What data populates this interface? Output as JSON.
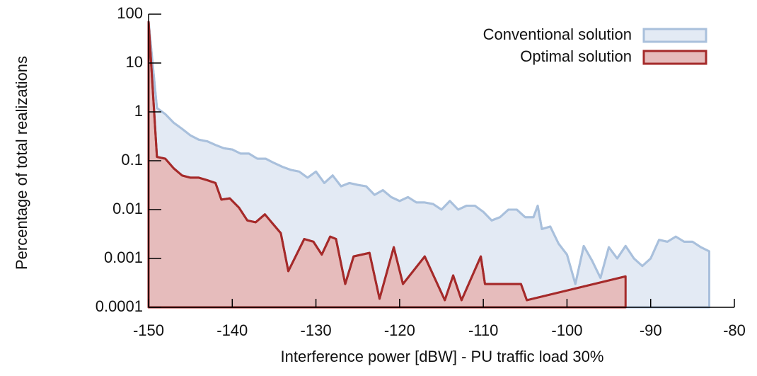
{
  "chart_data": {
    "type": "area",
    "xlabel": "Interference power [dBW] - PU traffic load 30%",
    "ylabel": "Percentage of total realizations",
    "xlim": [
      -150,
      -80
    ],
    "xticks": [
      -150,
      -140,
      -130,
      -120,
      -110,
      -100,
      -90,
      -80
    ],
    "ylim": [
      0.0001,
      100
    ],
    "yticks": [
      100,
      10,
      1,
      0.1,
      0.01,
      0.001,
      0.0001
    ],
    "ylog": true,
    "grid": false,
    "legend": "upper right",
    "series": [
      {
        "name": "Conventional solution",
        "color": "#a9c0dc",
        "fill": "#e3eaf4",
        "x": [
          -150,
          -149,
          -148,
          -147,
          -146,
          -145,
          -144,
          -143,
          -142,
          -141,
          -140,
          -139,
          -138,
          -137,
          -136,
          -135,
          -134,
          -133,
          -132,
          -131,
          -130,
          -129,
          -128,
          -127,
          -126,
          -125,
          -124,
          -123,
          -122,
          -121,
          -120,
          -119,
          -118,
          -117,
          -116,
          -115,
          -114,
          -113,
          -112,
          -111,
          -110,
          -109,
          -108,
          -107,
          -106,
          -105,
          -104,
          -103.5,
          -103,
          -102,
          -101,
          -100,
          -99,
          -98,
          -97,
          -96,
          -95,
          -94,
          -93,
          -92,
          -91,
          -90,
          -89,
          -88,
          -87,
          -86,
          -85,
          -84,
          -83
        ],
        "values": [
          70,
          1.2,
          0.9,
          0.6,
          0.45,
          0.33,
          0.27,
          0.25,
          0.21,
          0.18,
          0.17,
          0.14,
          0.14,
          0.11,
          0.11,
          0.09,
          0.075,
          0.065,
          0.06,
          0.045,
          0.06,
          0.035,
          0.05,
          0.03,
          0.035,
          0.032,
          0.03,
          0.02,
          0.025,
          0.018,
          0.015,
          0.018,
          0.014,
          0.014,
          0.013,
          0.01,
          0.015,
          0.01,
          0.012,
          0.012,
          0.009,
          0.006,
          0.007,
          0.01,
          0.01,
          0.007,
          0.007,
          0.012,
          0.004,
          0.0045,
          0.002,
          0.0012,
          0.0003,
          0.0018,
          0.0009,
          0.0004,
          0.0017,
          0.001,
          0.0018,
          0.001,
          0.0007,
          0.001,
          0.0024,
          0.0022,
          0.0028,
          0.0022,
          0.0022,
          0.0017,
          0.0014
        ]
      },
      {
        "name": "Optimal solution",
        "color": "#a52a2a",
        "fill": "#e6bcbc",
        "x": [
          -150,
          -149,
          -148,
          -147,
          -146,
          -145,
          -144,
          -143,
          -142,
          -141.3,
          -140.3,
          -139.2,
          -138.2,
          -137.2,
          -136.1,
          -135.1,
          -134.2,
          -133.3,
          -131.4,
          -130.3,
          -129.3,
          -128.3,
          -127.6,
          -126.5,
          -125.5,
          -123.6,
          -122.4,
          -120.7,
          -119.6,
          -117,
          -114.6,
          -113.6,
          -112.6,
          -110.3,
          -109.8,
          -105.5,
          -104.8,
          -93
        ],
        "values": [
          70,
          0.12,
          0.11,
          0.07,
          0.05,
          0.045,
          0.045,
          0.04,
          0.035,
          0.016,
          0.017,
          0.011,
          0.006,
          0.0055,
          0.008,
          0.005,
          0.0033,
          0.00055,
          0.0025,
          0.0022,
          0.0012,
          0.0028,
          0.0025,
          0.0003,
          0.0011,
          0.0013,
          0.00015,
          0.0017,
          0.0003,
          0.0011,
          0.00014,
          0.00045,
          0.00014,
          0.0011,
          0.0003,
          0.0003,
          0.00014,
          0.00043
        ]
      }
    ]
  }
}
